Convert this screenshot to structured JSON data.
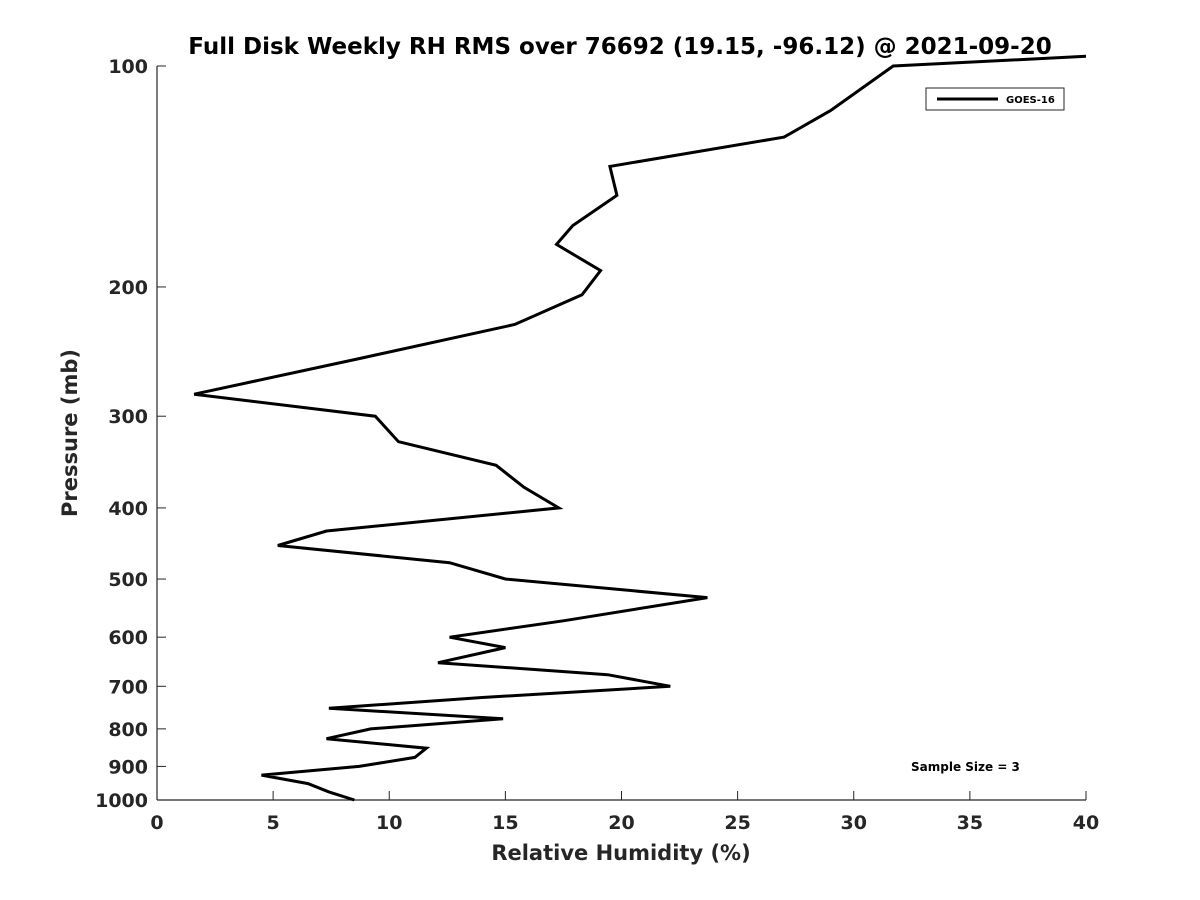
{
  "chart_data": {
    "type": "line",
    "title": "Full Disk Weekly RH RMS over 76692 (19.15, -96.12) @ 2021-09-20",
    "xlabel": "Relative Humidity (%)",
    "ylabel": "Pressure (mb)",
    "xlim": [
      0,
      40
    ],
    "ylim": [
      100,
      1000
    ],
    "y_scale": "log",
    "y_reversed": true,
    "xticks": [
      0,
      5,
      10,
      15,
      20,
      25,
      30,
      35,
      40
    ],
    "yticks": [
      100,
      200,
      300,
      400,
      500,
      600,
      700,
      800,
      900,
      1000
    ],
    "grid": false,
    "legend_position": "top-right",
    "annotation": "Sample Size = 3",
    "series": [
      {
        "name": "GOES-16",
        "color": "#000000",
        "points": [
          [
            8.5,
            1000
          ],
          [
            7.4,
            975
          ],
          [
            6.5,
            950
          ],
          [
            4.5,
            925
          ],
          [
            8.7,
            900
          ],
          [
            11.1,
            875
          ],
          [
            11.6,
            850
          ],
          [
            7.3,
            825
          ],
          [
            9.2,
            800
          ],
          [
            14.9,
            775
          ],
          [
            7.4,
            750
          ],
          [
            14.0,
            725
          ],
          [
            22.1,
            700
          ],
          [
            19.4,
            675
          ],
          [
            12.1,
            650
          ],
          [
            15.0,
            620
          ],
          [
            12.6,
            600
          ],
          [
            17.5,
            570
          ],
          [
            23.7,
            530
          ],
          [
            15.0,
            500
          ],
          [
            12.6,
            475
          ],
          [
            5.2,
            450
          ],
          [
            7.3,
            430
          ],
          [
            17.3,
            400
          ],
          [
            15.8,
            375
          ],
          [
            14.6,
            350
          ],
          [
            10.4,
            325
          ],
          [
            9.4,
            300
          ],
          [
            1.6,
            280
          ],
          [
            8.8,
            250
          ],
          [
            15.4,
            225
          ],
          [
            18.3,
            205
          ],
          [
            19.1,
            190
          ],
          [
            17.2,
            175
          ],
          [
            17.9,
            165
          ],
          [
            19.8,
            150
          ],
          [
            19.5,
            137
          ],
          [
            27.0,
            125
          ],
          [
            29.0,
            115
          ],
          [
            31.7,
            100
          ],
          [
            40.0,
            97
          ]
        ]
      }
    ]
  }
}
